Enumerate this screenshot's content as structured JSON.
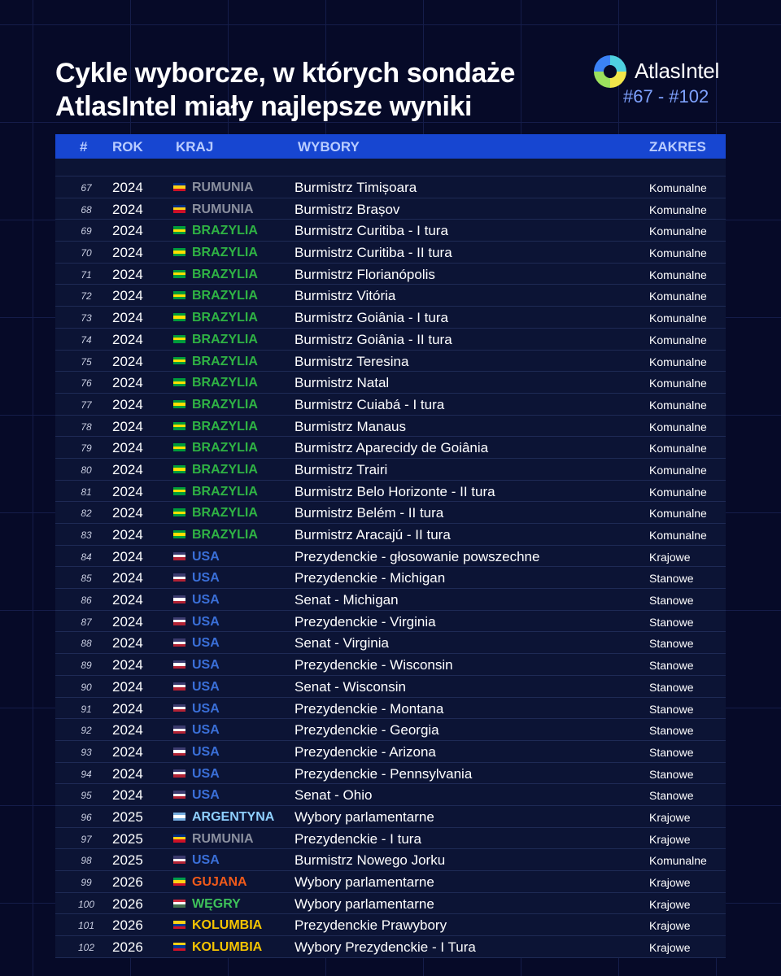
{
  "header": {
    "title_lines": [
      "Cykle wyborcze, w których sondaże",
      "AtlasIntel miały najlepsze wyniki"
    ],
    "brand": "AtlasIntel",
    "range": "#67 - #102"
  },
  "table": {
    "columns": [
      "#",
      "ROK",
      "KRAJ",
      "WYBORY",
      "ZAKRES"
    ],
    "rows": [
      {
        "number": 67,
        "year": 2024,
        "country": "RUMUNIA",
        "election": "Burmistrz Timișoara",
        "scope": "Komunalne",
        "country_color": "#8a8f9e",
        "flag": [
          "#002b7f",
          "#fcd116",
          "#ce1126"
        ]
      },
      {
        "number": 68,
        "year": 2024,
        "country": "RUMUNIA",
        "election": "Burmistrz Brașov",
        "scope": "Komunalne",
        "country_color": "#8a8f9e",
        "flag": [
          "#002b7f",
          "#fcd116",
          "#ce1126"
        ]
      },
      {
        "number": 69,
        "year": 2024,
        "country": "BRAZYLIA",
        "election": "Burmistrz Curitiba - I tura",
        "scope": "Komunalne",
        "country_color": "#2fb344",
        "flag": [
          "#009c3b",
          "#ffdf00",
          "#009c3b"
        ]
      },
      {
        "number": 70,
        "year": 2024,
        "country": "BRAZYLIA",
        "election": "Burmistrz Curitiba - II tura",
        "scope": "Komunalne",
        "country_color": "#2fb344",
        "flag": [
          "#009c3b",
          "#ffdf00",
          "#009c3b"
        ]
      },
      {
        "number": 71,
        "year": 2024,
        "country": "BRAZYLIA",
        "election": "Burmistrz Florianópolis",
        "scope": "Komunalne",
        "country_color": "#2fb344",
        "flag": [
          "#009c3b",
          "#ffdf00",
          "#009c3b"
        ]
      },
      {
        "number": 72,
        "year": 2024,
        "country": "BRAZYLIA",
        "election": "Burmistrz Vitória",
        "scope": "Komunalne",
        "country_color": "#2fb344",
        "flag": [
          "#009c3b",
          "#ffdf00",
          "#009c3b"
        ]
      },
      {
        "number": 73,
        "year": 2024,
        "country": "BRAZYLIA",
        "election": "Burmistrz Goiânia - I tura",
        "scope": "Komunalne",
        "country_color": "#2fb344",
        "flag": [
          "#009c3b",
          "#ffdf00",
          "#009c3b"
        ]
      },
      {
        "number": 74,
        "year": 2024,
        "country": "BRAZYLIA",
        "election": "Burmistrz Goiânia - II tura",
        "scope": "Komunalne",
        "country_color": "#2fb344",
        "flag": [
          "#009c3b",
          "#ffdf00",
          "#009c3b"
        ]
      },
      {
        "number": 75,
        "year": 2024,
        "country": "BRAZYLIA",
        "election": "Burmistrz Teresina",
        "scope": "Komunalne",
        "country_color": "#2fb344",
        "flag": [
          "#009c3b",
          "#ffdf00",
          "#009c3b"
        ]
      },
      {
        "number": 76,
        "year": 2024,
        "country": "BRAZYLIA",
        "election": "Burmistrz Natal",
        "scope": "Komunalne",
        "country_color": "#2fb344",
        "flag": [
          "#009c3b",
          "#ffdf00",
          "#009c3b"
        ]
      },
      {
        "number": 77,
        "year": 2024,
        "country": "BRAZYLIA",
        "election": "Burmistrz Cuiabá - I tura",
        "scope": "Komunalne",
        "country_color": "#2fb344",
        "flag": [
          "#009c3b",
          "#ffdf00",
          "#009c3b"
        ]
      },
      {
        "number": 78,
        "year": 2024,
        "country": "BRAZYLIA",
        "election": "Burmistrz Manaus",
        "scope": "Komunalne",
        "country_color": "#2fb344",
        "flag": [
          "#009c3b",
          "#ffdf00",
          "#009c3b"
        ]
      },
      {
        "number": 79,
        "year": 2024,
        "country": "BRAZYLIA",
        "election": "Burmistrz Aparecidy de Goiânia",
        "scope": "Komunalne",
        "country_color": "#2fb344",
        "flag": [
          "#009c3b",
          "#ffdf00",
          "#009c3b"
        ]
      },
      {
        "number": 80,
        "year": 2024,
        "country": "BRAZYLIA",
        "election": "Burmistrz Trairi",
        "scope": "Komunalne",
        "country_color": "#2fb344",
        "flag": [
          "#009c3b",
          "#ffdf00",
          "#009c3b"
        ]
      },
      {
        "number": 81,
        "year": 2024,
        "country": "BRAZYLIA",
        "election": "Burmistrz Belo Horizonte - II tura",
        "scope": "Komunalne",
        "country_color": "#2fb344",
        "flag": [
          "#009c3b",
          "#ffdf00",
          "#009c3b"
        ]
      },
      {
        "number": 82,
        "year": 2024,
        "country": "BRAZYLIA",
        "election": "Burmistrz Belém - II tura",
        "scope": "Komunalne",
        "country_color": "#2fb344",
        "flag": [
          "#009c3b",
          "#ffdf00",
          "#009c3b"
        ]
      },
      {
        "number": 83,
        "year": 2024,
        "country": "BRAZYLIA",
        "election": "Burmistrz Aracajú - II tura",
        "scope": "Komunalne",
        "country_color": "#2fb344",
        "flag": [
          "#009c3b",
          "#ffdf00",
          "#009c3b"
        ]
      },
      {
        "number": 84,
        "year": 2024,
        "country": "USA",
        "election": "Prezydenckie - głosowanie powszechne",
        "scope": "Krajowe",
        "country_color": "#3a6fd8",
        "flag": [
          "#3c3b6e",
          "#ffffff",
          "#b22234"
        ]
      },
      {
        "number": 85,
        "year": 2024,
        "country": "USA",
        "election": "Prezydenckie - Michigan",
        "scope": "Stanowe",
        "country_color": "#3a6fd8",
        "flag": [
          "#3c3b6e",
          "#ffffff",
          "#b22234"
        ]
      },
      {
        "number": 86,
        "year": 2024,
        "country": "USA",
        "election": "Senat - Michigan",
        "scope": "Stanowe",
        "country_color": "#3a6fd8",
        "flag": [
          "#3c3b6e",
          "#ffffff",
          "#b22234"
        ]
      },
      {
        "number": 87,
        "year": 2024,
        "country": "USA",
        "election": "Prezydenckie - Virginia",
        "scope": "Stanowe",
        "country_color": "#3a6fd8",
        "flag": [
          "#3c3b6e",
          "#ffffff",
          "#b22234"
        ]
      },
      {
        "number": 88,
        "year": 2024,
        "country": "USA",
        "election": "Senat - Virginia",
        "scope": "Stanowe",
        "country_color": "#3a6fd8",
        "flag": [
          "#3c3b6e",
          "#ffffff",
          "#b22234"
        ]
      },
      {
        "number": 89,
        "year": 2024,
        "country": "USA",
        "election": "Prezydenckie - Wisconsin",
        "scope": "Stanowe",
        "country_color": "#3a6fd8",
        "flag": [
          "#3c3b6e",
          "#ffffff",
          "#b22234"
        ]
      },
      {
        "number": 90,
        "year": 2024,
        "country": "USA",
        "election": "Senat - Wisconsin",
        "scope": "Stanowe",
        "country_color": "#3a6fd8",
        "flag": [
          "#3c3b6e",
          "#ffffff",
          "#b22234"
        ]
      },
      {
        "number": 91,
        "year": 2024,
        "country": "USA",
        "election": "Prezydenckie - Montana",
        "scope": "Stanowe",
        "country_color": "#3a6fd8",
        "flag": [
          "#3c3b6e",
          "#ffffff",
          "#b22234"
        ]
      },
      {
        "number": 92,
        "year": 2024,
        "country": "USA",
        "election": "Prezydenckie - Georgia",
        "scope": "Stanowe",
        "country_color": "#3a6fd8",
        "flag": [
          "#3c3b6e",
          "#ffffff",
          "#b22234"
        ]
      },
      {
        "number": 93,
        "year": 2024,
        "country": "USA",
        "election": "Prezydenckie - Arizona",
        "scope": "Stanowe",
        "country_color": "#3a6fd8",
        "flag": [
          "#3c3b6e",
          "#ffffff",
          "#b22234"
        ]
      },
      {
        "number": 94,
        "year": 2024,
        "country": "USA",
        "election": "Prezydenckie - Pennsylvania",
        "scope": "Stanowe",
        "country_color": "#3a6fd8",
        "flag": [
          "#3c3b6e",
          "#ffffff",
          "#b22234"
        ]
      },
      {
        "number": 95,
        "year": 2024,
        "country": "USA",
        "election": "Senat - Ohio",
        "scope": "Stanowe",
        "country_color": "#3a6fd8",
        "flag": [
          "#3c3b6e",
          "#ffffff",
          "#b22234"
        ]
      },
      {
        "number": 96,
        "year": 2025,
        "country": "ARGENTYNA",
        "election": "Wybory parlamentarne",
        "scope": "Krajowe",
        "country_color": "#8fd0ff",
        "flag": [
          "#74acdf",
          "#ffffff",
          "#74acdf"
        ]
      },
      {
        "number": 97,
        "year": 2025,
        "country": "RUMUNIA",
        "election": "Prezydenckie - I tura",
        "scope": "Krajowe",
        "country_color": "#8a8f9e",
        "flag": [
          "#002b7f",
          "#fcd116",
          "#ce1126"
        ]
      },
      {
        "number": 98,
        "year": 2025,
        "country": "USA",
        "election": "Burmistrz Nowego Jorku",
        "scope": "Komunalne",
        "country_color": "#3a6fd8",
        "flag": [
          "#3c3b6e",
          "#ffffff",
          "#b22234"
        ]
      },
      {
        "number": 99,
        "year": 2026,
        "country": "GUJANA",
        "election": "Wybory parlamentarne",
        "scope": "Krajowe",
        "country_color": "#f05a1a",
        "flag": [
          "#009e49",
          "#fcd116",
          "#ce1126"
        ]
      },
      {
        "number": 100,
        "year": 2026,
        "country": "WĘGRY",
        "election": "Wybory parlamentarne",
        "scope": "Krajowe",
        "country_color": "#3ec25a",
        "flag": [
          "#cd2a3e",
          "#ffffff",
          "#436f4d"
        ]
      },
      {
        "number": 101,
        "year": 2026,
        "country": "KOLUMBIA",
        "election": "Prezydenckie Prawybory",
        "scope": "Krajowe",
        "country_color": "#f5c400",
        "flag": [
          "#fcd116",
          "#003893",
          "#ce1126"
        ]
      },
      {
        "number": 102,
        "year": 2026,
        "country": "KOLUMBIA",
        "election": "Wybory Prezydenckie - I Tura",
        "scope": "Krajowe",
        "country_color": "#f5c400",
        "flag": [
          "#fcd116",
          "#003893",
          "#ce1126"
        ]
      }
    ]
  }
}
